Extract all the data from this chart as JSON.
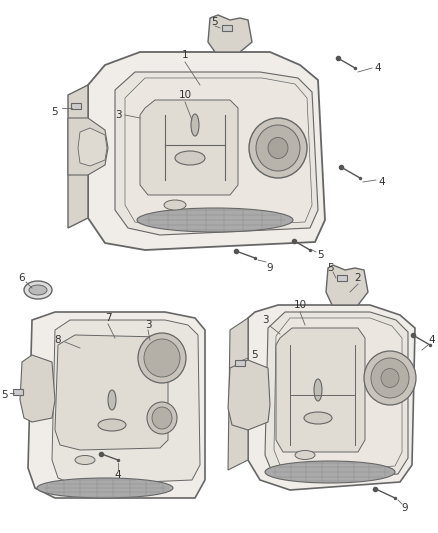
{
  "bg_color": "#ffffff",
  "line_color": "#666666",
  "panel_fill": "#f0ede8",
  "panel_dark": "#d8d4cc",
  "panel_inner": "#e8e4de",
  "grille_color": "#aaaaaa",
  "speaker_color": "#c8c4bc",
  "callout_color": "#333333",
  "callout_fs": 7.5,
  "screw_color": "#555555"
}
